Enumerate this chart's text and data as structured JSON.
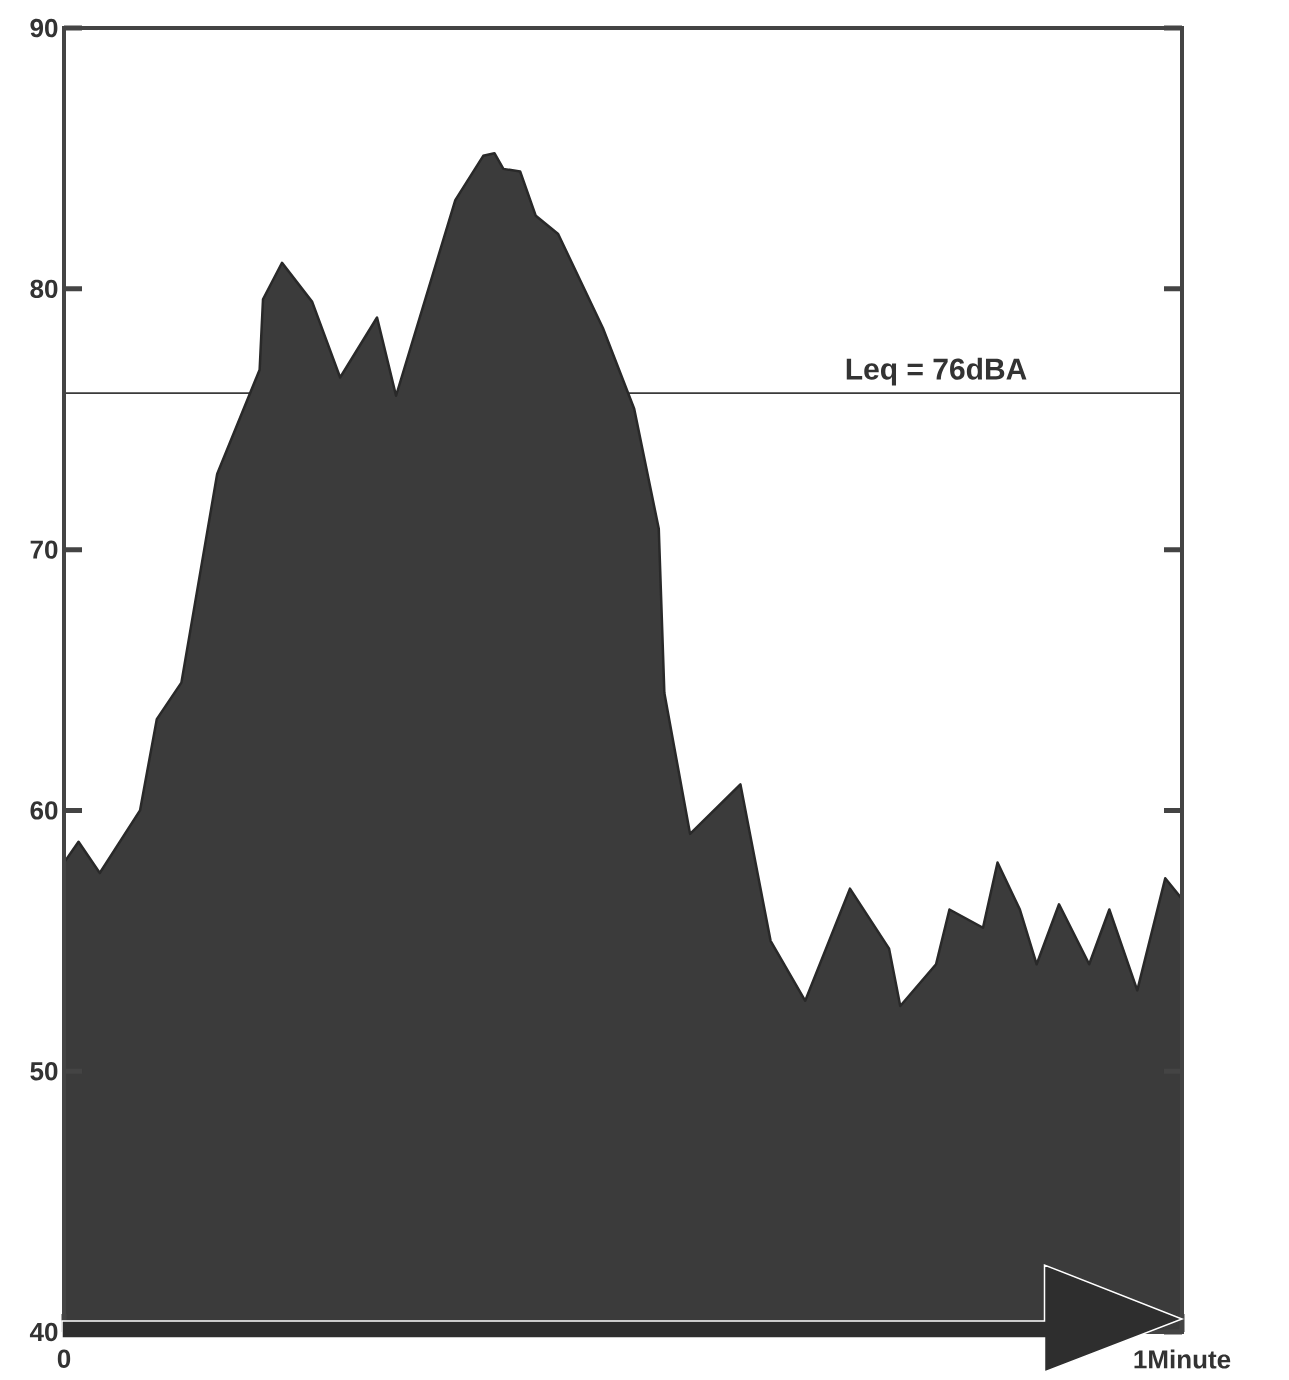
{
  "chart_data": {
    "type": "area",
    "x": [
      0,
      0.013,
      0.032,
      0.068,
      0.083,
      0.105,
      0.137,
      0.175,
      0.178,
      0.195,
      0.222,
      0.247,
      0.28,
      0.297,
      0.35,
      0.375,
      0.385,
      0.393,
      0.408,
      0.422,
      0.442,
      0.482,
      0.51,
      0.532,
      0.537,
      0.56,
      0.605,
      0.632,
      0.663,
      0.703,
      0.738,
      0.748,
      0.78,
      0.792,
      0.822,
      0.835,
      0.855,
      0.87,
      0.89,
      0.917,
      0.935,
      0.96,
      0.985,
      1
    ],
    "values": [
      58.0,
      58.8,
      57.6,
      60.0,
      63.5,
      64.9,
      72.9,
      76.9,
      79.6,
      81.0,
      79.5,
      76.6,
      78.9,
      75.9,
      83.4,
      85.1,
      85.2,
      84.6,
      84.5,
      82.8,
      82.1,
      78.5,
      75.4,
      70.8,
      64.5,
      59.1,
      61.0,
      55.0,
      52.7,
      57.0,
      54.7,
      52.5,
      54.1,
      56.2,
      55.5,
      58.0,
      56.2,
      54.1,
      56.4,
      54.1,
      56.2,
      53.1,
      57.4,
      56.6
    ],
    "color": "#3b3b3b",
    "xlim": [
      0,
      1
    ],
    "xticks": [
      0,
      {
        "value": 1,
        "label": "1Minute"
      }
    ],
    "ylim": [
      40,
      90
    ],
    "yticks": [
      40,
      50,
      60,
      70,
      80,
      90
    ],
    "ref_lines": [
      {
        "axis": "y",
        "value": 76,
        "label": "Leq = 76dBA",
        "color": "#3a3a3a"
      }
    ]
  }
}
